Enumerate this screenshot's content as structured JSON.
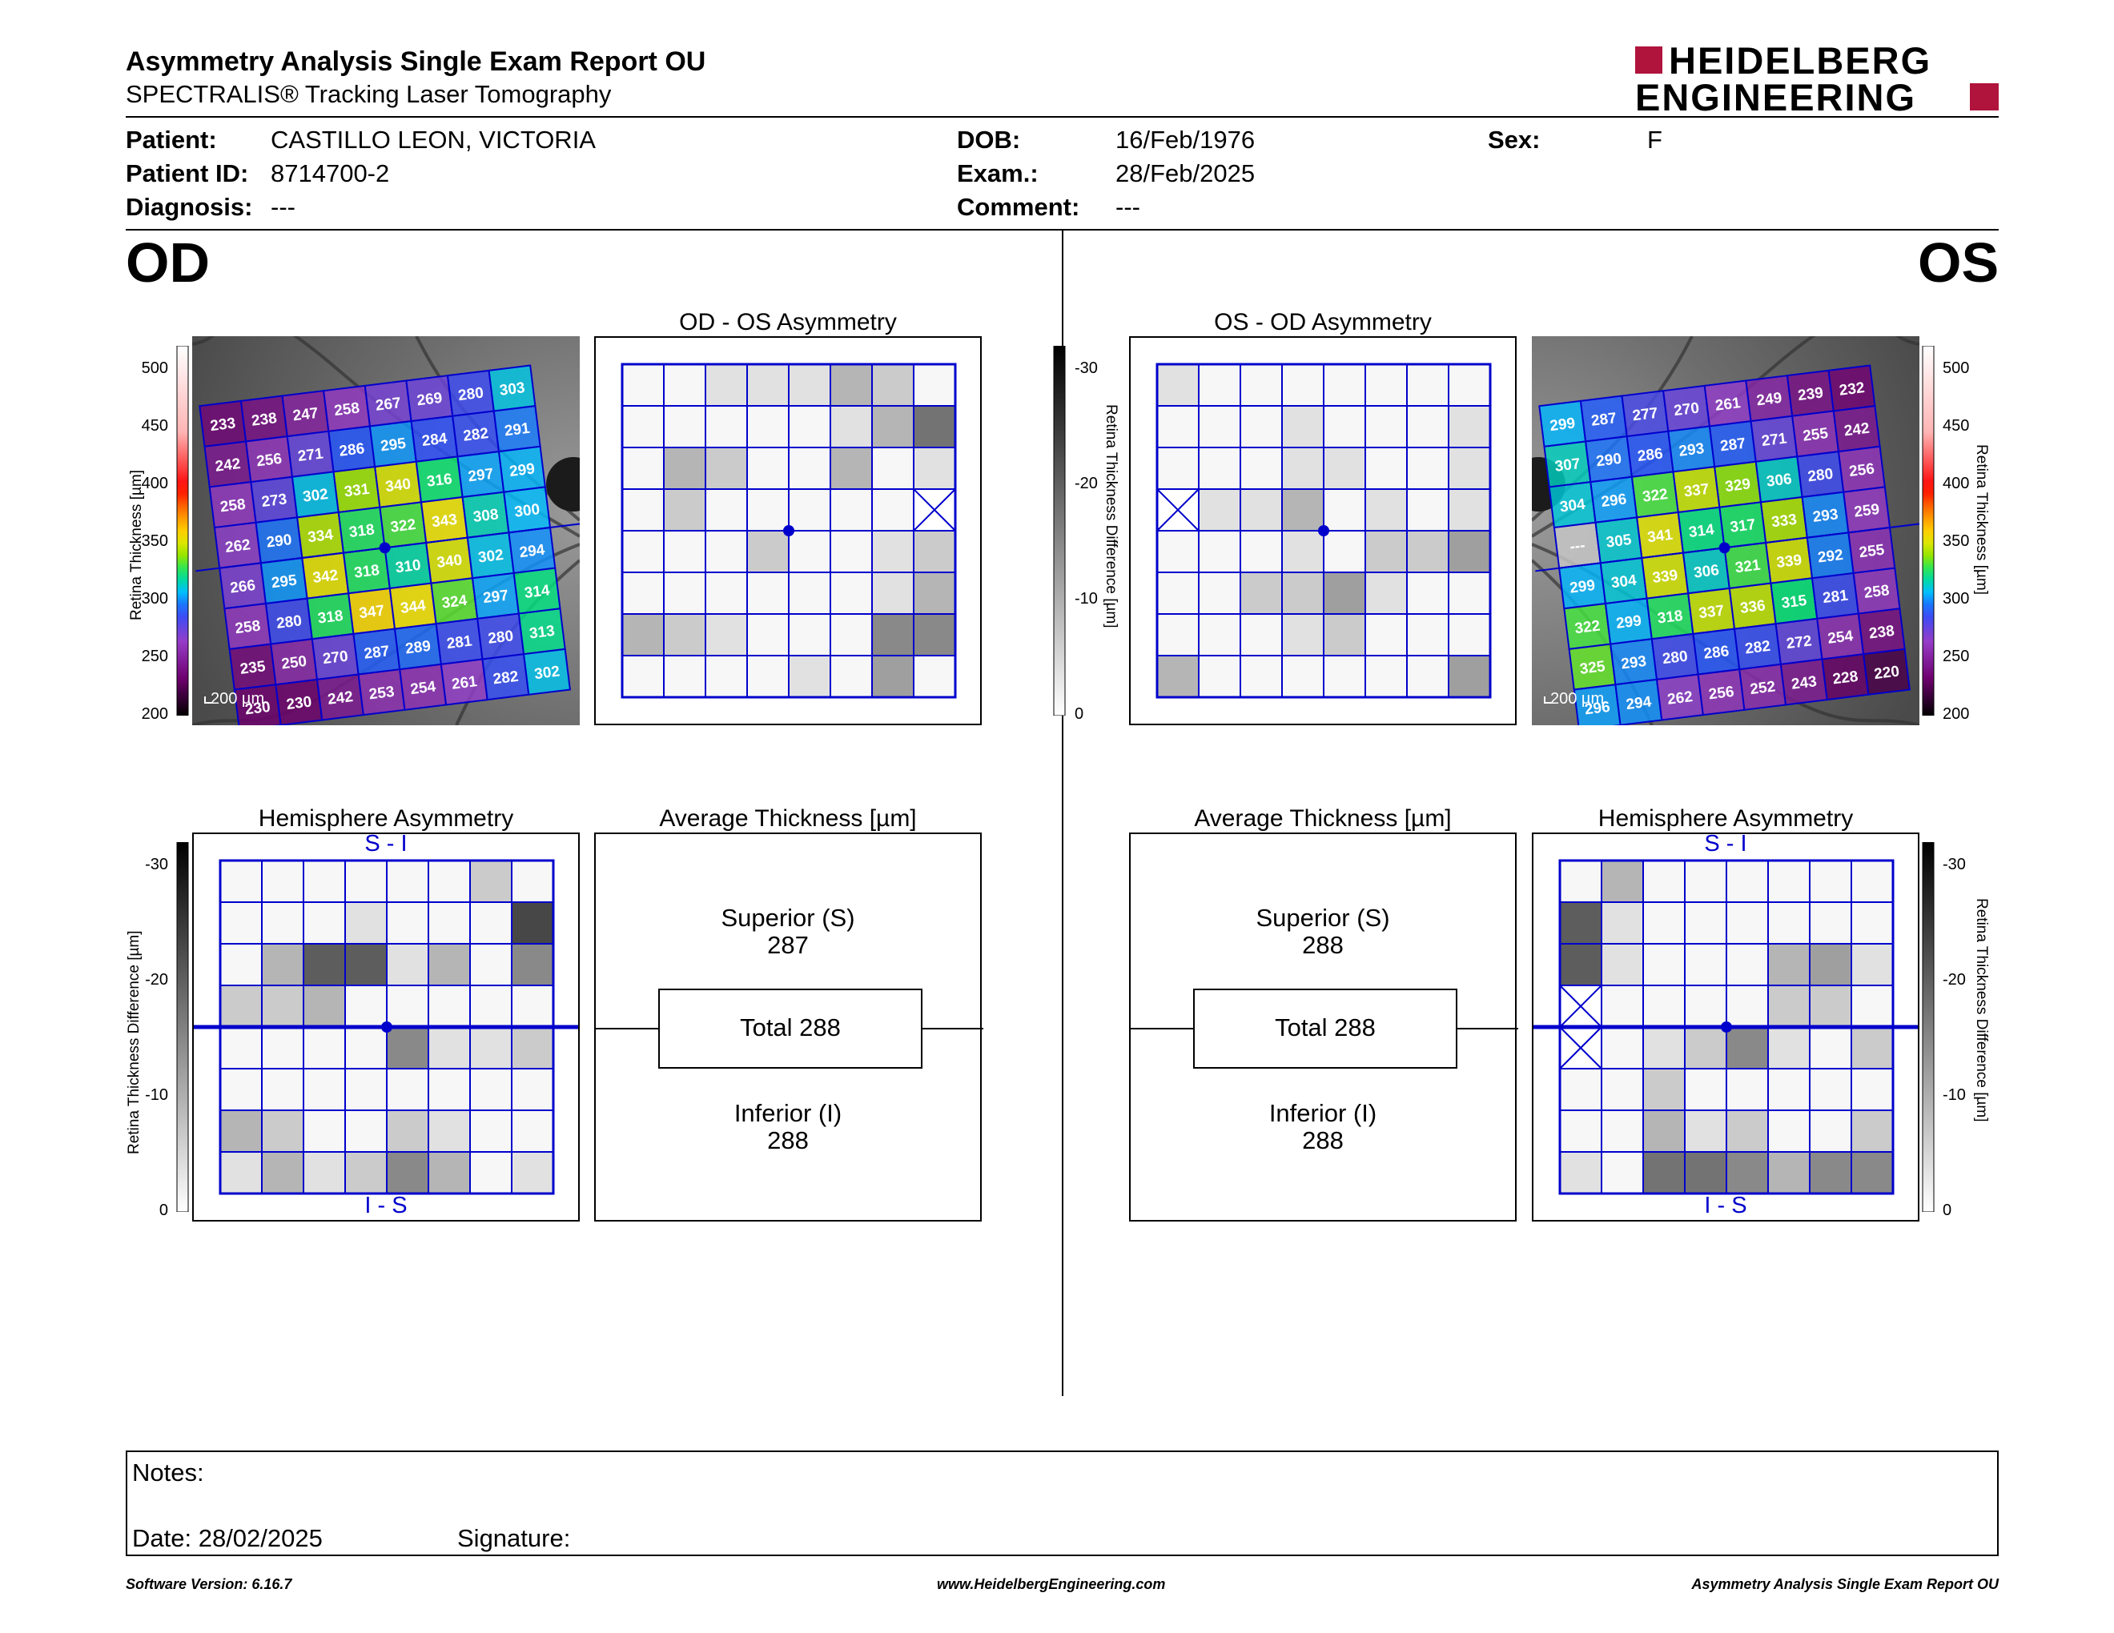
{
  "header": {
    "title": "Asymmetry Analysis Single Exam Report OU",
    "subtitle": "SPECTRALIS® Tracking Laser Tomography",
    "logo_line1": "HEIDELBERG",
    "logo_line2": "ENGINEERING",
    "brand_color": "#b0133c"
  },
  "patient": {
    "patient_label": "Patient:",
    "patient_value": "CASTILLO LEON, VICTORIA",
    "id_label": "Patient ID:",
    "id_value": "8714700-2",
    "diagnosis_label": "Diagnosis:",
    "diagnosis_value": "---",
    "dob_label": "DOB:",
    "dob_value": "16/Feb/1976",
    "exam_label": "Exam.:",
    "exam_value": "28/Feb/2025",
    "comment_label": "Comment:",
    "comment_value": "---",
    "sex_label": "Sex:",
    "sex_value": "F"
  },
  "od": {
    "label": "OD",
    "asym_title": "OD - OS Asymmetry",
    "hemi_title": "Hemisphere Asymmetry",
    "avg_title": "Average Thickness [µm]",
    "hemi_top": "S - I",
    "hemi_bottom": "I - S",
    "superior_label": "Superior (S)",
    "superior_value": "287",
    "total_text": "Total 288",
    "inferior_label": "Inferior (I)",
    "inferior_value": "288",
    "scale_text": "200 µm",
    "thickness_grid": [
      [
        233,
        238,
        247,
        258,
        267,
        269,
        280,
        303
      ],
      [
        242,
        256,
        271,
        286,
        295,
        284,
        282,
        291
      ],
      [
        258,
        273,
        302,
        331,
        340,
        316,
        297,
        299
      ],
      [
        262,
        290,
        334,
        318,
        322,
        343,
        308,
        300
      ],
      [
        266,
        295,
        342,
        318,
        310,
        340,
        302,
        294
      ],
      [
        258,
        280,
        318,
        347,
        344,
        324,
        297,
        314
      ],
      [
        235,
        250,
        270,
        287,
        289,
        281,
        280,
        313
      ],
      [
        230,
        230,
        242,
        253,
        254,
        261,
        282,
        302
      ]
    ],
    "asym_grid": [
      [
        0,
        0,
        1,
        1,
        1,
        3,
        2,
        0
      ],
      [
        0,
        0,
        0,
        0,
        0,
        1,
        3,
        6
      ],
      [
        0,
        3,
        2,
        0,
        0,
        3,
        0,
        1
      ],
      [
        0,
        2,
        0,
        0,
        0,
        0,
        0,
        -1
      ],
      [
        0,
        0,
        0,
        2,
        0,
        0,
        1,
        2
      ],
      [
        0,
        0,
        0,
        0,
        0,
        0,
        1,
        3
      ],
      [
        3,
        2,
        1,
        0,
        0,
        0,
        5,
        5
      ],
      [
        0,
        0,
        0,
        0,
        1,
        0,
        4,
        0
      ]
    ],
    "hemi_grid": [
      [
        0,
        0,
        0,
        0,
        0,
        0,
        2,
        0
      ],
      [
        0,
        0,
        0,
        1,
        0,
        0,
        0,
        8
      ],
      [
        0,
        3,
        7,
        7,
        1,
        3,
        0,
        5
      ],
      [
        2,
        2,
        3,
        0,
        0,
        0,
        0,
        0
      ],
      [
        0,
        0,
        0,
        0,
        5,
        1,
        1,
        2
      ],
      [
        0,
        0,
        0,
        0,
        0,
        0,
        0,
        0
      ],
      [
        3,
        2,
        0,
        0,
        2,
        1,
        0,
        0
      ],
      [
        1,
        3,
        1,
        2,
        5,
        3,
        0,
        1
      ]
    ]
  },
  "os": {
    "label": "OS",
    "asym_title": "OS - OD Asymmetry",
    "hemi_title": "Hemisphere Asymmetry",
    "avg_title": "Average Thickness [µm]",
    "hemi_top": "S - I",
    "hemi_bottom": "I - S",
    "superior_label": "Superior (S)",
    "superior_value": "288",
    "total_text": "Total 288",
    "inferior_label": "Inferior (I)",
    "inferior_value": "288",
    "scale_text": "200 µm",
    "thickness_grid": [
      [
        299,
        287,
        277,
        270,
        261,
        249,
        239,
        232
      ],
      [
        307,
        290,
        286,
        293,
        287,
        271,
        255,
        242
      ],
      [
        304,
        296,
        322,
        337,
        329,
        306,
        280,
        256
      ],
      [
        "---",
        305,
        341,
        314,
        317,
        333,
        293,
        259
      ],
      [
        299,
        304,
        339,
        306,
        321,
        339,
        292,
        255
      ],
      [
        322,
        299,
        318,
        337,
        336,
        315,
        281,
        258
      ],
      [
        325,
        293,
        280,
        286,
        282,
        272,
        254,
        238
      ],
      [
        296,
        294,
        262,
        256,
        252,
        243,
        228,
        220
      ]
    ],
    "asym_grid": [
      [
        1,
        0,
        0,
        0,
        0,
        0,
        0,
        0
      ],
      [
        0,
        0,
        0,
        1,
        0,
        0,
        0,
        1
      ],
      [
        0,
        0,
        0,
        1,
        1,
        0,
        0,
        1
      ],
      [
        -1,
        1,
        1,
        3,
        0,
        1,
        0,
        1
      ],
      [
        0,
        0,
        0,
        1,
        0,
        2,
        2,
        4
      ],
      [
        0,
        0,
        2,
        2,
        4,
        1,
        0,
        0
      ],
      [
        0,
        0,
        0,
        1,
        2,
        0,
        0,
        0
      ],
      [
        3,
        0,
        0,
        0,
        0,
        0,
        0,
        4
      ]
    ],
    "hemi_grid": [
      [
        0,
        3,
        0,
        0,
        0,
        0,
        0,
        0
      ],
      [
        7,
        1,
        0,
        0,
        0,
        0,
        0,
        0
      ],
      [
        7,
        1,
        0,
        0,
        0,
        3,
        4,
        1
      ],
      [
        -1,
        0,
        0,
        0,
        0,
        2,
        2,
        0
      ],
      [
        -1,
        0,
        1,
        2,
        5,
        1,
        0,
        2
      ],
      [
        0,
        0,
        2,
        0,
        0,
        0,
        0,
        0
      ],
      [
        0,
        0,
        3,
        1,
        2,
        0,
        0,
        2
      ],
      [
        1,
        0,
        6,
        6,
        5,
        3,
        5,
        5
      ]
    ]
  },
  "scales": {
    "thickness_axis_label": "Retina Thickness [µm]",
    "thickness_ticks": [
      "500",
      "450",
      "400",
      "350",
      "300",
      "250",
      "200"
    ],
    "diff_axis_label": "Retina Thickness Difference [µm]",
    "diff_ticks": [
      "-30",
      "-20",
      "-10",
      "0"
    ]
  },
  "notes": {
    "notes_label": "Notes:",
    "date_text": "Date: 28/02/2025",
    "signature_label": "Signature:"
  },
  "footer": {
    "left": "Software Version: 6.16.7",
    "center": "www.HeidelbergEngineering.com",
    "right": "Asymmetry Analysis Single Exam Report OU"
  },
  "colors": {
    "grid_blue": "#0000cc"
  }
}
